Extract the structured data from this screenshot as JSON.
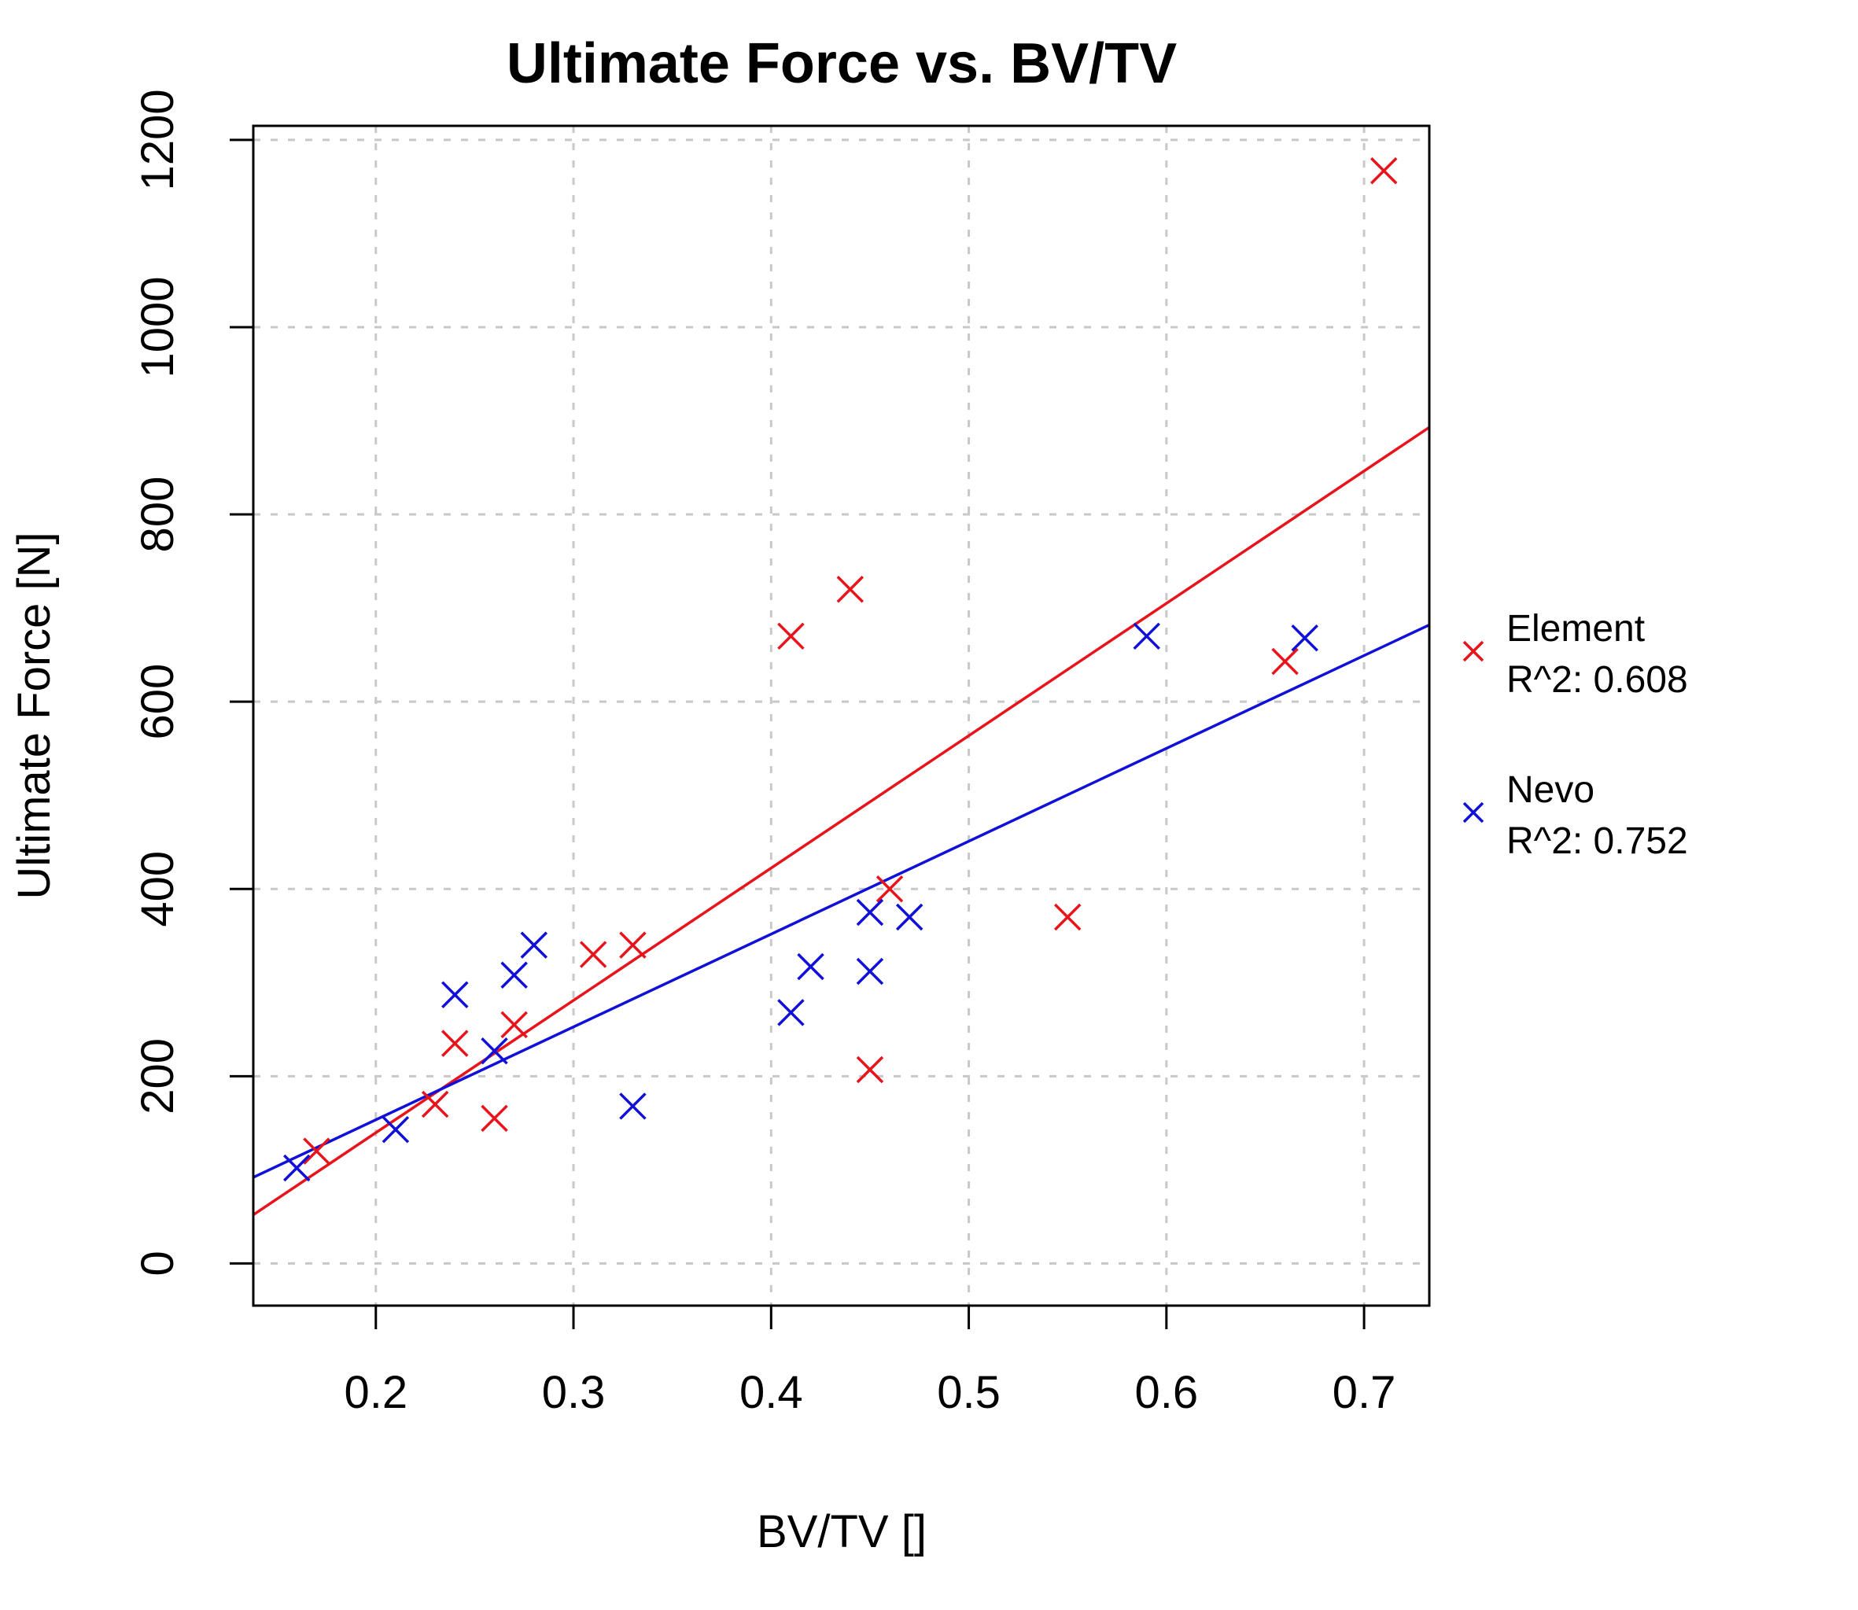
{
  "chart_data": {
    "type": "scatter",
    "title": "Ultimate Force vs. BV/TV",
    "xlabel": "BV/TV []",
    "ylabel": "Ultimate Force [N]",
    "xlim": [
      0.138,
      0.733
    ],
    "ylim": [
      -45,
      1215
    ],
    "xticks": [
      0.2,
      0.3,
      0.4,
      0.5,
      0.6,
      0.7
    ],
    "xtick_labels": [
      "0.2",
      "0.3",
      "0.4",
      "0.5",
      "0.6",
      "0.7"
    ],
    "yticks": [
      0,
      200,
      400,
      600,
      800,
      1000,
      1200
    ],
    "ytick_labels": [
      "0",
      "200",
      "400",
      "600",
      "800",
      "1000",
      "1200"
    ],
    "grid": true,
    "legend_position": "right",
    "series": [
      {
        "name": "Element",
        "color": "#e8141c",
        "marker": "x",
        "r2_label": "R^2: 0.608",
        "fit": {
          "x": [
            0.138,
            0.733
          ],
          "y": [
            52,
            893
          ]
        },
        "points": [
          [
            0.17,
            120
          ],
          [
            0.23,
            170
          ],
          [
            0.24,
            235
          ],
          [
            0.26,
            155
          ],
          [
            0.27,
            255
          ],
          [
            0.31,
            330
          ],
          [
            0.33,
            340
          ],
          [
            0.41,
            670
          ],
          [
            0.44,
            720
          ],
          [
            0.45,
            207
          ],
          [
            0.46,
            400
          ],
          [
            0.55,
            370
          ],
          [
            0.66,
            643
          ],
          [
            0.71,
            1167
          ]
        ]
      },
      {
        "name": "Nevo",
        "color": "#1010d8",
        "marker": "x",
        "r2_label": "R^2: 0.752",
        "fit": {
          "x": [
            0.138,
            0.733
          ],
          "y": [
            92,
            682
          ]
        },
        "points": [
          [
            0.16,
            102
          ],
          [
            0.21,
            143
          ],
          [
            0.24,
            287
          ],
          [
            0.26,
            227
          ],
          [
            0.27,
            308
          ],
          [
            0.28,
            340
          ],
          [
            0.33,
            168
          ],
          [
            0.41,
            268
          ],
          [
            0.42,
            317
          ],
          [
            0.45,
            312
          ],
          [
            0.45,
            375
          ],
          [
            0.47,
            370
          ],
          [
            0.59,
            670
          ],
          [
            0.67,
            668
          ]
        ]
      }
    ]
  }
}
